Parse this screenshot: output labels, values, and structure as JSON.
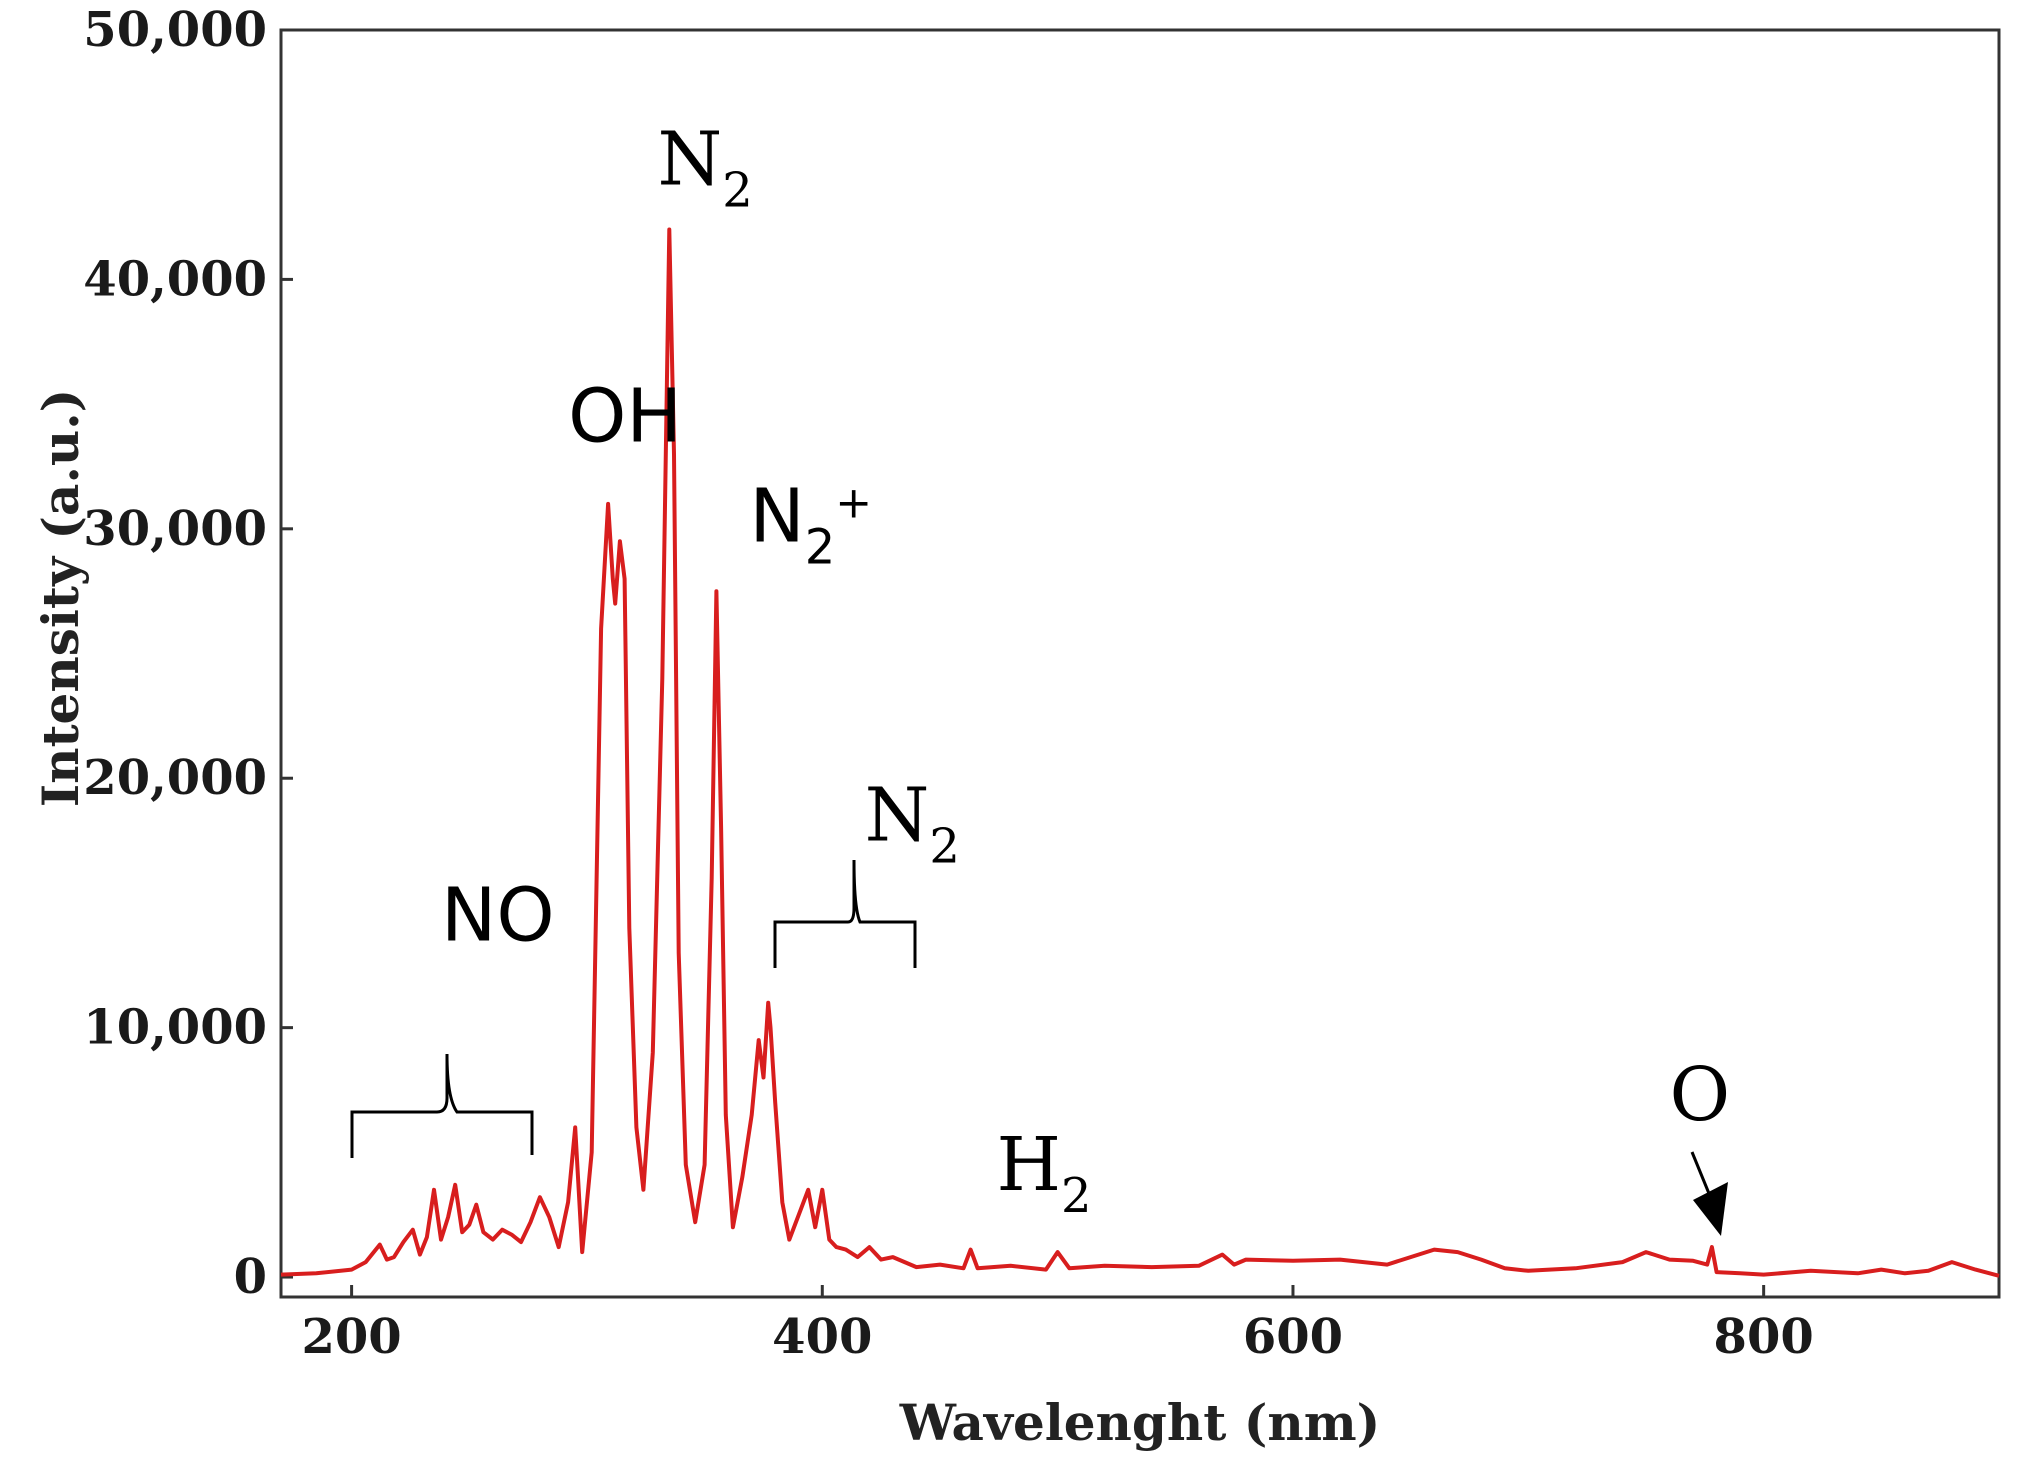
{
  "chart_data": {
    "type": "line",
    "title": "",
    "xlabel": "Wavelenght (nm)",
    "ylabel": "Intensity (a.u.)",
    "xlim": [
      170,
      900
    ],
    "ylim": [
      -800,
      50000
    ],
    "xticks": [
      200,
      400,
      600,
      800
    ],
    "xtick_labels": [
      "200",
      "400",
      "600",
      "800"
    ],
    "yticks": [
      0,
      10000,
      20000,
      30000,
      40000,
      50000
    ],
    "ytick_labels": [
      "0",
      "10,000",
      "20,000",
      "30,000",
      "40,000",
      "50,000"
    ],
    "grid": false,
    "legend": "none",
    "series_color": "#d81e1e",
    "series": [
      {
        "x": [
          170,
          185,
          200,
          206,
          212,
          215,
          218,
          222,
          226,
          229,
          232,
          235,
          238,
          241,
          244,
          247,
          250,
          253,
          256,
          260,
          264,
          268,
          272,
          276,
          280,
          284,
          288,
          292,
          295,
          298,
          302,
          306,
          309,
          311,
          312,
          314,
          316,
          318,
          321,
          324,
          328,
          332,
          335,
          337,
          339,
          342,
          346,
          350,
          353,
          355,
          357,
          359,
          362,
          366,
          370,
          373,
          375,
          377,
          378,
          380,
          383,
          386,
          390,
          394,
          397,
          400,
          403,
          406,
          410,
          415,
          420,
          425,
          430,
          440,
          450,
          460,
          463,
          466,
          480,
          495,
          500,
          505,
          520,
          540,
          560,
          570,
          575,
          580,
          600,
          620,
          640,
          650,
          660,
          670,
          680,
          690,
          700,
          720,
          740,
          750,
          760,
          770,
          776,
          778,
          780,
          790,
          800,
          820,
          840,
          850,
          860,
          870,
          880,
          890,
          900
        ],
        "y": [
          100,
          150,
          300,
          600,
          1300,
          700,
          800,
          1400,
          1900,
          900,
          1600,
          3500,
          1500,
          2400,
          3700,
          1800,
          2100,
          2900,
          1800,
          1500,
          1900,
          1700,
          1400,
          2200,
          3200,
          2400,
          1200,
          3000,
          6000,
          1000,
          5000,
          26000,
          31000,
          28000,
          27000,
          29500,
          28000,
          14000,
          6000,
          3500,
          9000,
          24000,
          42000,
          33000,
          13000,
          4500,
          2200,
          4500,
          16000,
          27500,
          18000,
          6500,
          2000,
          4000,
          6500,
          9500,
          8000,
          11000,
          10000,
          7000,
          3000,
          1500,
          2500,
          3500,
          2000,
          3500,
          1500,
          1200,
          1100,
          800,
          1200,
          700,
          800,
          400,
          500,
          350,
          1100,
          350,
          450,
          300,
          1000,
          350,
          450,
          400,
          450,
          900,
          500,
          700,
          650,
          700,
          500,
          800,
          1100,
          1000,
          700,
          350,
          250,
          350,
          600,
          1000,
          700,
          650,
          500,
          1200,
          200,
          150,
          100,
          250,
          150,
          300,
          150,
          250,
          600,
          300,
          50
        ]
      }
    ],
    "annotations": [
      {
        "label": "NO",
        "x": 238,
        "y": 13500
      },
      {
        "label": "OH",
        "x": 292,
        "y": 33500
      },
      {
        "label": "N",
        "sub": "2",
        "x": 330,
        "y": 43800
      },
      {
        "label": "N",
        "sub": "2",
        "sup": "+",
        "x": 369,
        "y": 29500
      },
      {
        "label": "N",
        "sub": "2",
        "x": 418,
        "y": 17500
      },
      {
        "label": "H",
        "sub": "2",
        "x": 474,
        "y": 3500
      },
      {
        "label": "O",
        "x": 760,
        "y": 6300
      }
    ]
  }
}
